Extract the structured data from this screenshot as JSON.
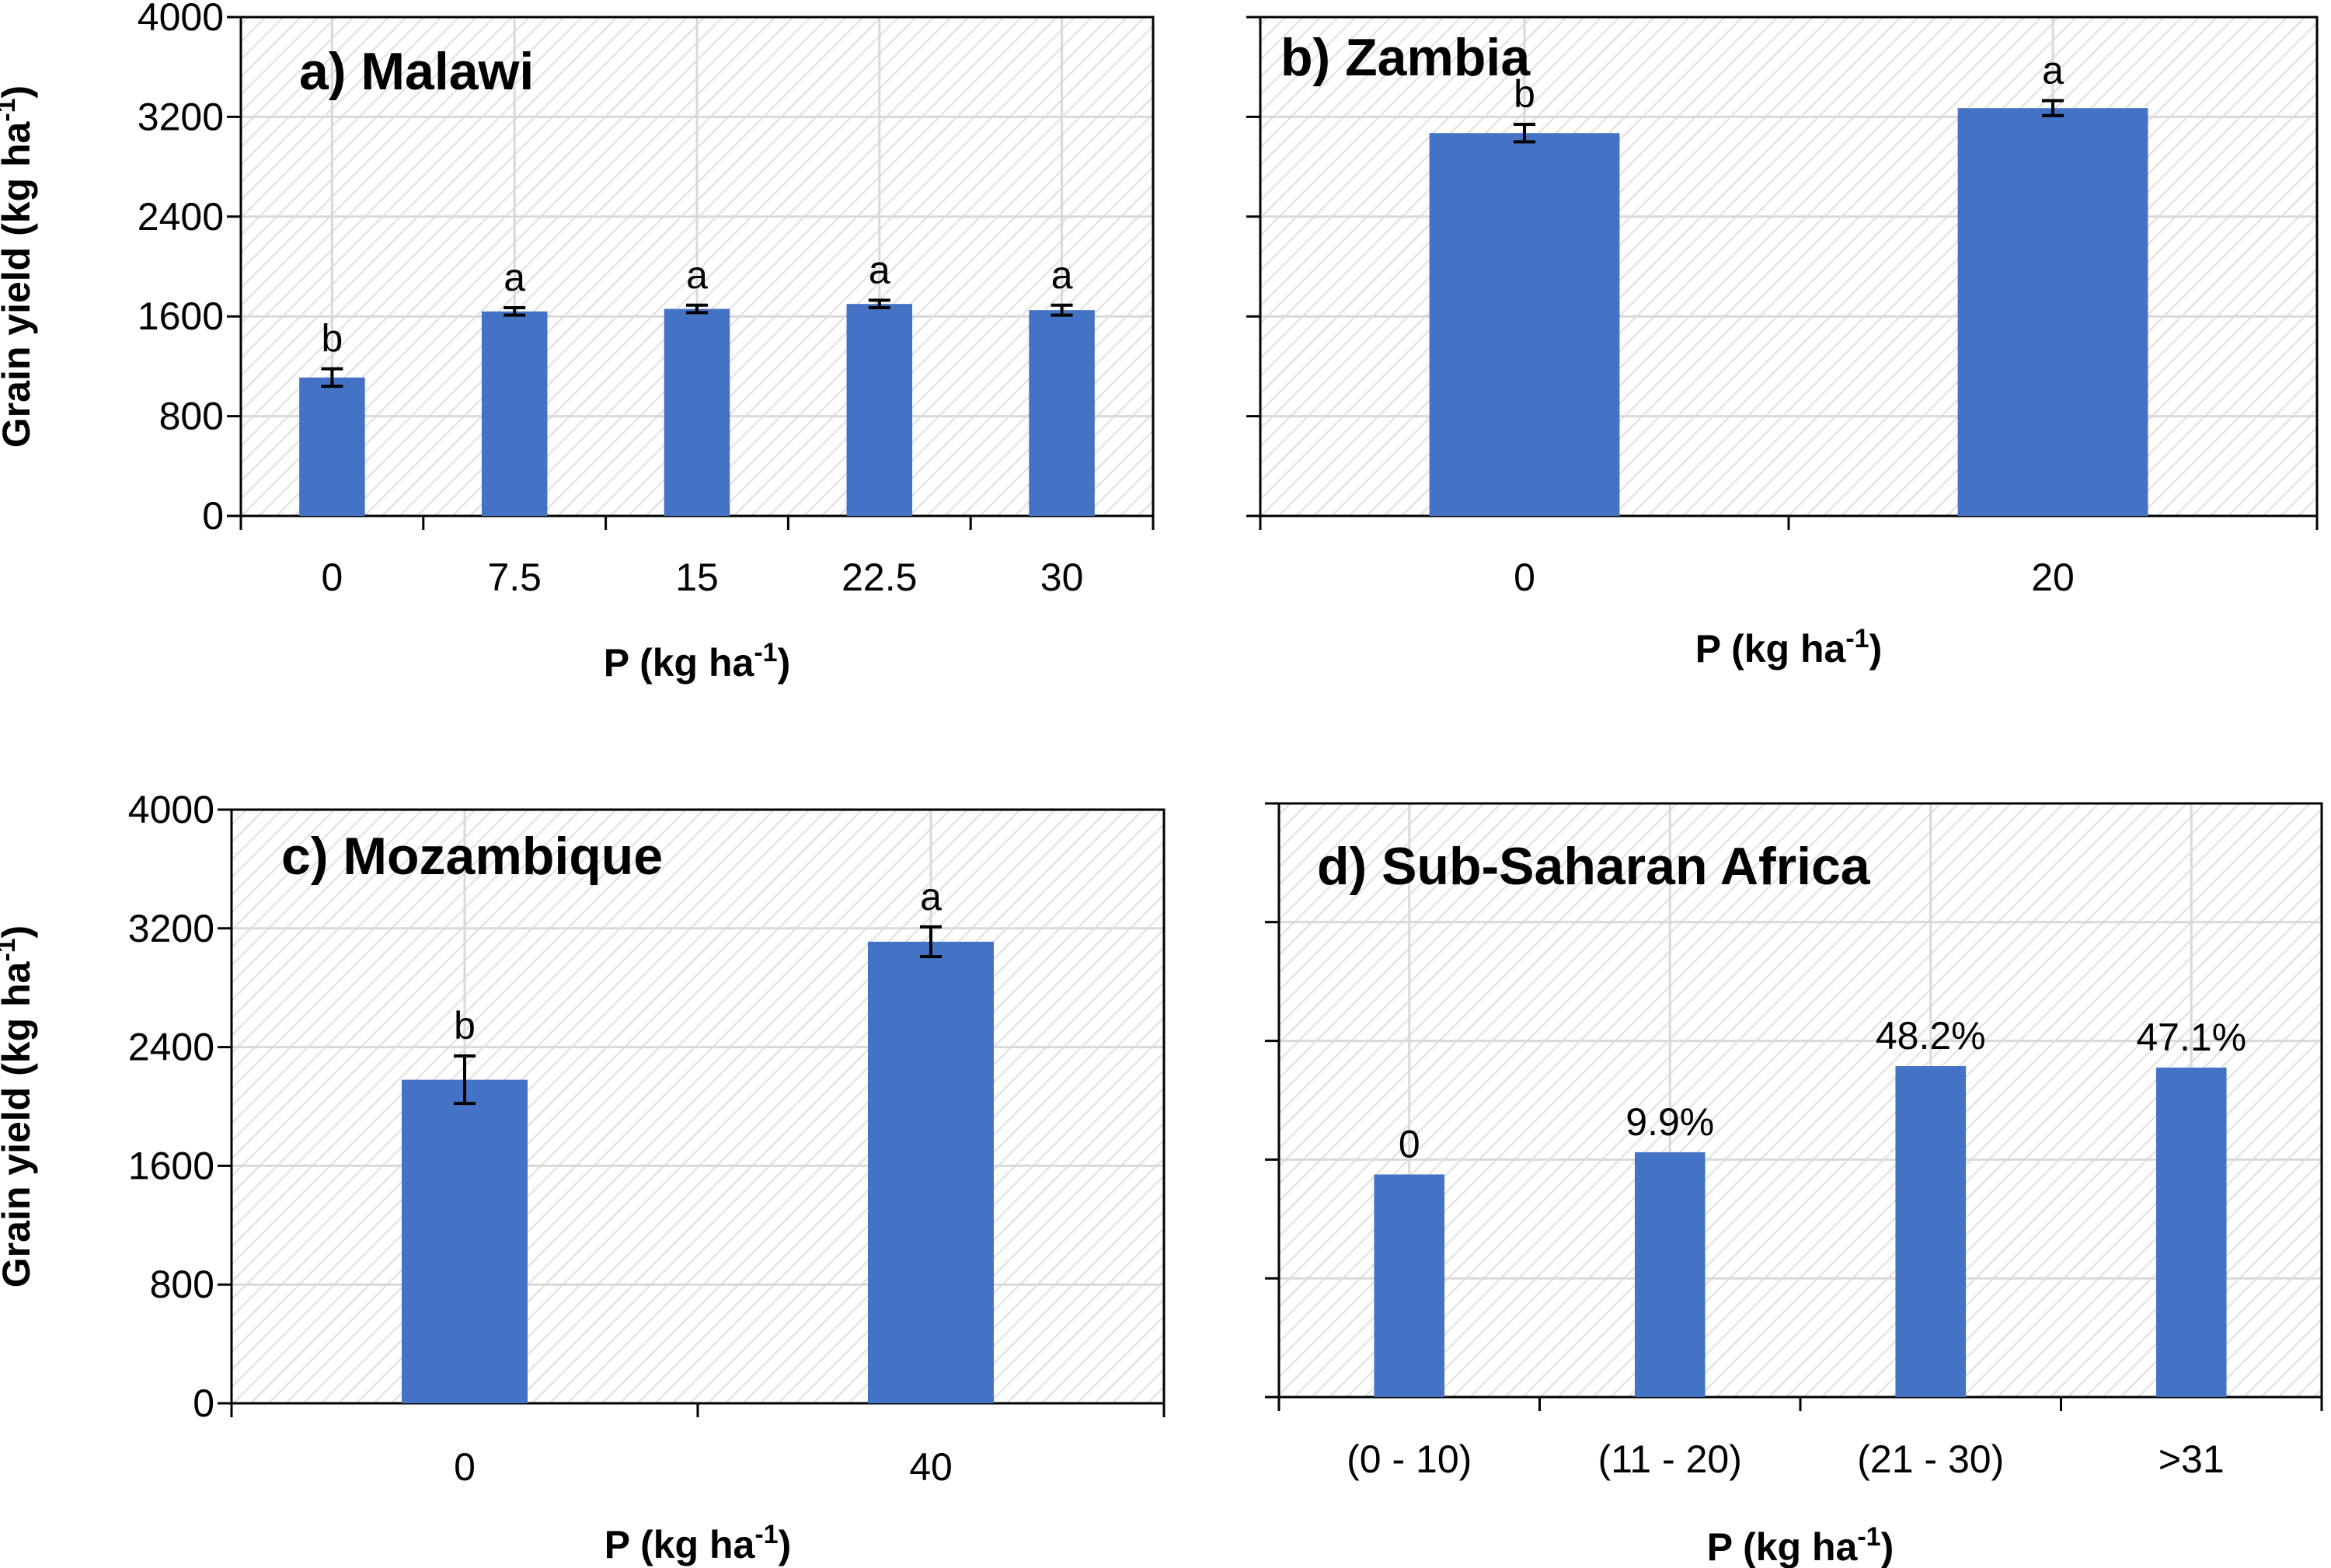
{
  "colors": {
    "bar": "#4472C4",
    "frame": "#000000",
    "grid": "#d9d9d9",
    "hatch": "#e6e6e6"
  },
  "chart_data": [
    {
      "id": "malawi",
      "type": "bar",
      "title": "a) Malawi",
      "xlabel": "P (kg ha",
      "xlabel_sup": "-1",
      "xlabel_end": ")",
      "ylabel": "Grain yield (kg ha",
      "ylabel_sup": "-1",
      "ylabel_end": ")",
      "ylim": [
        0,
        4000
      ],
      "yticks": [
        0,
        800,
        1600,
        2400,
        3200,
        4000
      ],
      "show_ytick_labels": true,
      "categories": [
        "0",
        "7.5",
        "15",
        "22.5",
        "30"
      ],
      "values": [
        1110,
        1640,
        1660,
        1700,
        1650
      ],
      "errors": [
        70,
        30,
        30,
        30,
        40
      ],
      "bar_labels": [
        "b",
        "a",
        "a",
        "a",
        "a"
      ]
    },
    {
      "id": "zambia",
      "type": "bar",
      "title": "b) Zambia",
      "xlabel": "P (kg ha",
      "xlabel_sup": "-1",
      "xlabel_end": ")",
      "ylim": [
        0,
        4000
      ],
      "yticks": [
        0,
        800,
        1600,
        2400,
        3200,
        4000
      ],
      "show_ytick_labels": false,
      "categories": [
        "0",
        "20"
      ],
      "values": [
        3070,
        3270
      ],
      "errors": [
        70,
        60
      ],
      "bar_labels": [
        "b",
        "a"
      ]
    },
    {
      "id": "mozambique",
      "type": "bar",
      "title": "c) Mozambique",
      "xlabel": "P (kg ha",
      "xlabel_sup": "-1",
      "xlabel_end": ")",
      "ylabel": "Grain yield (kg ha",
      "ylabel_sup": "-1",
      "ylabel_end": ")",
      "ylim": [
        0,
        4000
      ],
      "yticks": [
        0,
        800,
        1600,
        2400,
        3200,
        4000
      ],
      "show_ytick_labels": true,
      "categories": [
        "0",
        "40"
      ],
      "values": [
        2180,
        3110
      ],
      "errors": [
        160,
        100
      ],
      "bar_labels": [
        "b",
        "a"
      ]
    },
    {
      "id": "ssa",
      "type": "bar",
      "title": "d) Sub-Saharan Africa",
      "xlabel": "P (kg ha",
      "xlabel_sup": "-1",
      "xlabel_end": ")",
      "ylim": [
        0,
        4000
      ],
      "yticks": [
        0,
        800,
        1600,
        2400,
        3200,
        4000
      ],
      "show_ytick_labels": false,
      "categories": [
        "(0 - 10)",
        "(11 - 20)",
        "(21 - 30)",
        ">31"
      ],
      "values": [
        1500,
        1650,
        2230,
        2220
      ],
      "errors": [
        0,
        0,
        0,
        0
      ],
      "bar_labels": [
        "0",
        "9.9%",
        "48.2%",
        "47.1%"
      ]
    }
  ]
}
